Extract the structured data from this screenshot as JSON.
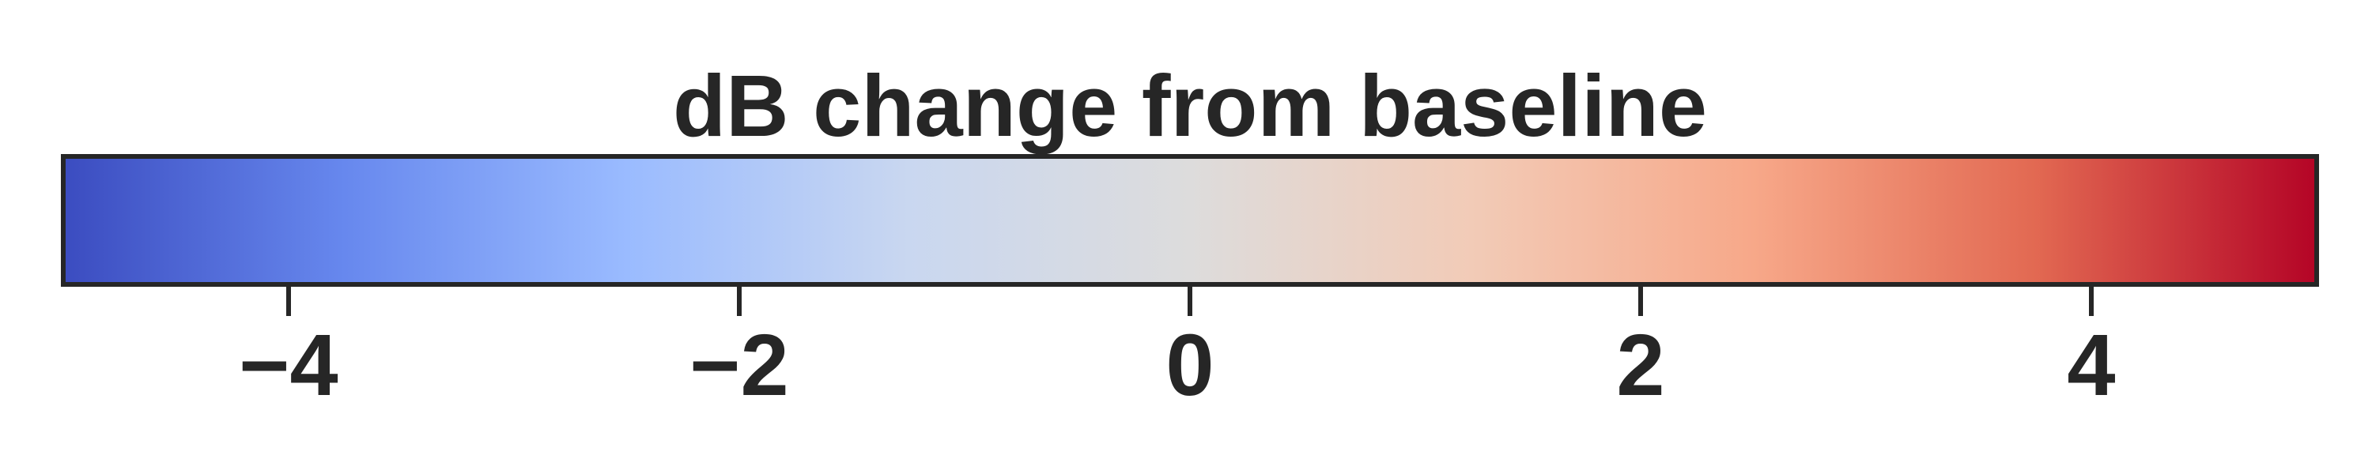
{
  "chart_data": {
    "type": "colorbar",
    "title": "dB change from baseline",
    "orientation": "horizontal",
    "colormap": "coolwarm",
    "vmin": -5,
    "vmax": 5,
    "ticks": [
      -4,
      -2,
      0,
      2,
      4
    ],
    "tick_labels": [
      "−4",
      "−2",
      "0",
      "2",
      "4"
    ],
    "colors": {
      "stops": [
        "#3b4cc0",
        "#6788ee",
        "#9abbff",
        "#c9d7f0",
        "#dddcdc",
        "#f2cbb7",
        "#f7a889",
        "#e26952",
        "#b40426"
      ],
      "frame": "#262626",
      "text": "#262626"
    }
  }
}
